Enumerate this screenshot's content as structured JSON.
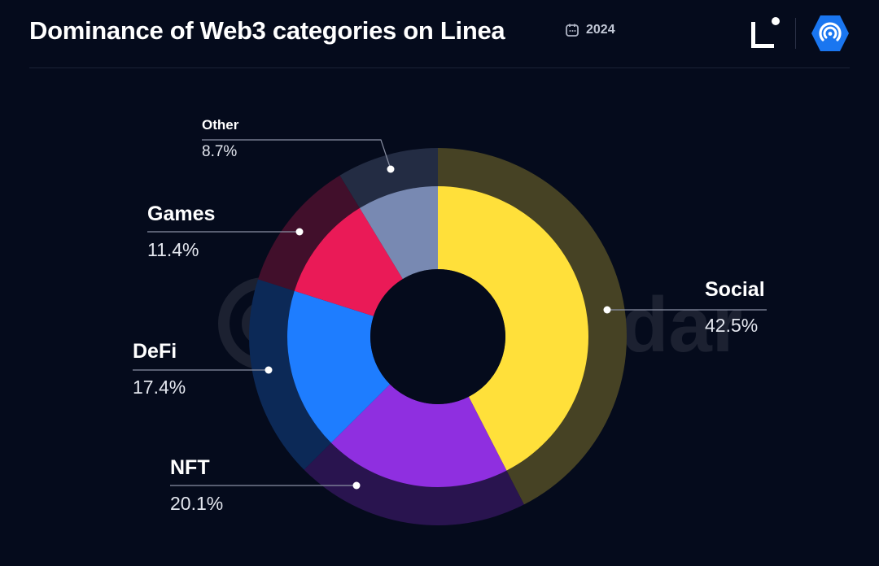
{
  "header": {
    "title": "Dominance of Web3 categories on Linea",
    "year": "2024"
  },
  "watermark": "DappRadar",
  "colors": {
    "background": "#050b1c",
    "Social": "#ffe03a",
    "NFT": "#8f2fe0",
    "DeFi": "#1e7dff",
    "Games": "#ea1a57",
    "Other": "#7889b2"
  },
  "chart_data": {
    "type": "pie",
    "style": "donut",
    "title": "Dominance of Web3 categories on Linea",
    "unit": "%",
    "categories": [
      "Social",
      "NFT",
      "DeFi",
      "Games",
      "Other"
    ],
    "values": [
      42.5,
      20.1,
      17.4,
      11.4,
      8.7
    ],
    "labels": [
      "42.5%",
      "20.1%",
      "17.4%",
      "11.4%",
      "8.7%"
    ]
  }
}
